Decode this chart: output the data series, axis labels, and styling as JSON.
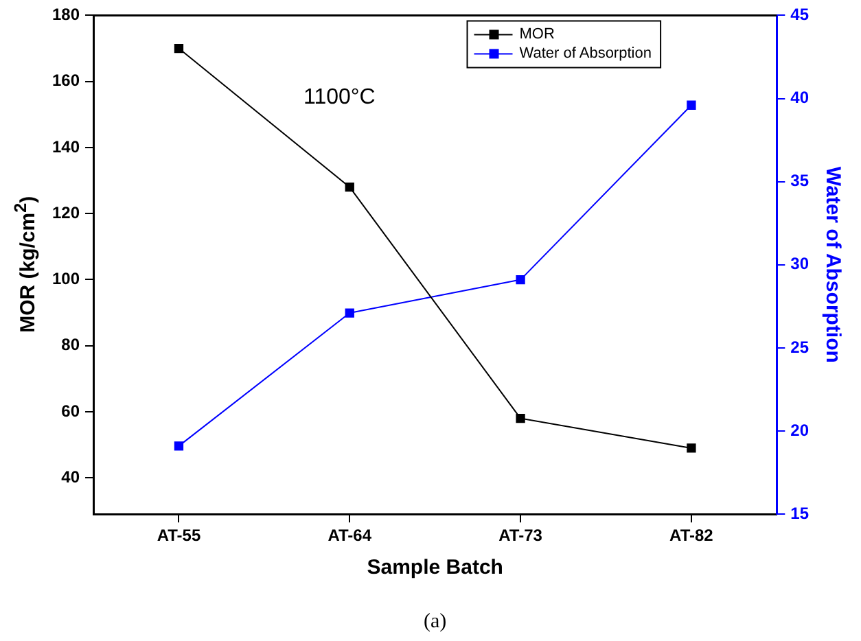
{
  "chart_data": {
    "type": "line",
    "xlabel": "Sample Batch",
    "ylabel": "MOR (kg/cm$^{2}$)",
    "y2label": "Water of Absorption",
    "categories": [
      "AT-55",
      "AT-64",
      "AT-73",
      "AT-82"
    ],
    "series": [
      {
        "name": "MOR",
        "color": "#000000",
        "values": [
          170,
          128,
          58,
          49
        ]
      },
      {
        "name": "Water of Absorption",
        "color": "#0000ff",
        "axis": "y2",
        "values": [
          19.1,
          27.1,
          29.1,
          39.6
        ]
      }
    ],
    "ylim": [
      29,
      180
    ],
    "yticks": [
      40,
      60,
      80,
      100,
      120,
      140,
      160,
      180
    ],
    "y2lim": [
      15,
      45
    ],
    "y2ticks": [
      15,
      20,
      25,
      30,
      35,
      40,
      45
    ],
    "marker": "square",
    "line_style": "solid",
    "grid": false,
    "legend": "top right",
    "annotations": [
      "1100°C",
      "(a)"
    ]
  }
}
